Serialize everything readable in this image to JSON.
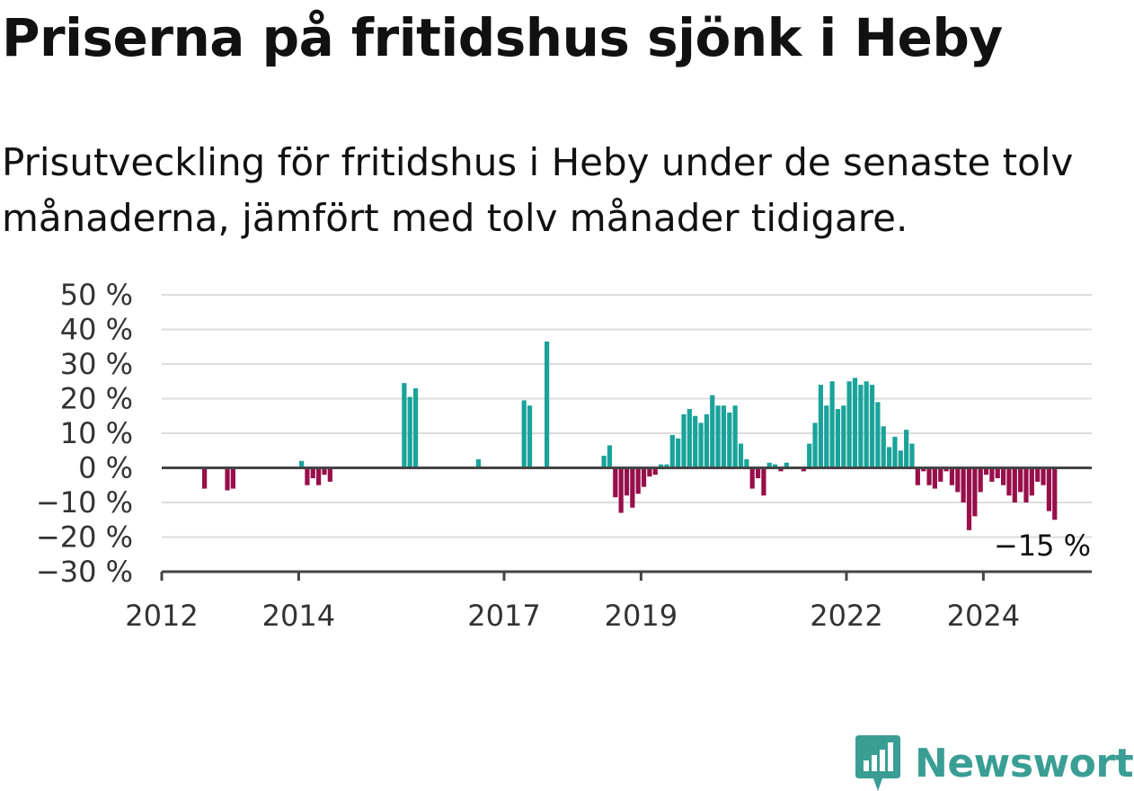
{
  "chart_data": {
    "type": "bar",
    "title": "Priserna på fritidshus sjönk i Heby",
    "subtitle": "Prisutveckling för fritidshus i Heby under de senaste tolv månaderna, jämfört med tolv månader tidigare.",
    "ylabel": "",
    "xlabel": "",
    "ylim": [
      -30,
      50
    ],
    "yticks": [
      {
        "value": 50,
        "label": "50 %"
      },
      {
        "value": 40,
        "label": "40 %"
      },
      {
        "value": 30,
        "label": "30 %"
      },
      {
        "value": 20,
        "label": "20 %"
      },
      {
        "value": 10,
        "label": "10 %"
      },
      {
        "value": 0,
        "label": "0 %"
      },
      {
        "value": -10,
        "label": "−10 %"
      },
      {
        "value": -20,
        "label": "−20 %"
      },
      {
        "value": -30,
        "label": "−30 %"
      }
    ],
    "xticks": [
      {
        "year": 2012,
        "label": "2012"
      },
      {
        "year": 2014,
        "label": "2014"
      },
      {
        "year": 2017,
        "label": "2017"
      },
      {
        "year": 2019,
        "label": "2019"
      },
      {
        "year": 2022,
        "label": "2022"
      },
      {
        "year": 2024,
        "label": "2024"
      }
    ],
    "x_start": "2012-01",
    "x_end": "2025-08",
    "grid": true,
    "positive_color": "#1aa39a",
    "negative_color": "#970f4a",
    "annotation": {
      "label": "−15 %",
      "month": "2024-12"
    },
    "bars": [
      {
        "month": "2012-08",
        "value": -6
      },
      {
        "month": "2012-12",
        "value": -6.5
      },
      {
        "month": "2013-01",
        "value": -6
      },
      {
        "month": "2014-01",
        "value": 2
      },
      {
        "month": "2014-02",
        "value": -5
      },
      {
        "month": "2014-03",
        "value": -3
      },
      {
        "month": "2014-04",
        "value": -5
      },
      {
        "month": "2014-05",
        "value": -2
      },
      {
        "month": "2014-06",
        "value": -4
      },
      {
        "month": "2015-07",
        "value": 24.5
      },
      {
        "month": "2015-08",
        "value": 20.5
      },
      {
        "month": "2015-09",
        "value": 23
      },
      {
        "month": "2016-08",
        "value": 2.5
      },
      {
        "month": "2017-04",
        "value": 19.5
      },
      {
        "month": "2017-05",
        "value": 18
      },
      {
        "month": "2017-08",
        "value": 36.5
      },
      {
        "month": "2018-06",
        "value": 3.5
      },
      {
        "month": "2018-07",
        "value": 6.5
      },
      {
        "month": "2018-08",
        "value": -8.5
      },
      {
        "month": "2018-09",
        "value": -13
      },
      {
        "month": "2018-10",
        "value": -8
      },
      {
        "month": "2018-11",
        "value": -11.5
      },
      {
        "month": "2018-12",
        "value": -7.5
      },
      {
        "month": "2019-01",
        "value": -5.5
      },
      {
        "month": "2019-02",
        "value": -2.5
      },
      {
        "month": "2019-03",
        "value": -2
      },
      {
        "month": "2019-04",
        "value": 1
      },
      {
        "month": "2019-05",
        "value": 1
      },
      {
        "month": "2019-06",
        "value": 9.5
      },
      {
        "month": "2019-07",
        "value": 8.5
      },
      {
        "month": "2019-08",
        "value": 15.5
      },
      {
        "month": "2019-09",
        "value": 17
      },
      {
        "month": "2019-10",
        "value": 15
      },
      {
        "month": "2019-11",
        "value": 13
      },
      {
        "month": "2019-12",
        "value": 15.5
      },
      {
        "month": "2020-01",
        "value": 21
      },
      {
        "month": "2020-02",
        "value": 18
      },
      {
        "month": "2020-03",
        "value": 18
      },
      {
        "month": "2020-04",
        "value": 16
      },
      {
        "month": "2020-05",
        "value": 18
      },
      {
        "month": "2020-06",
        "value": 7
      },
      {
        "month": "2020-07",
        "value": 2.5
      },
      {
        "month": "2020-08",
        "value": -6
      },
      {
        "month": "2020-09",
        "value": -3
      },
      {
        "month": "2020-10",
        "value": -8
      },
      {
        "month": "2020-11",
        "value": 1.5
      },
      {
        "month": "2020-12",
        "value": 1
      },
      {
        "month": "2021-01",
        "value": -1
      },
      {
        "month": "2021-02",
        "value": 1.5
      },
      {
        "month": "2021-05",
        "value": -1
      },
      {
        "month": "2021-06",
        "value": 7
      },
      {
        "month": "2021-07",
        "value": 13
      },
      {
        "month": "2021-08",
        "value": 24
      },
      {
        "month": "2021-09",
        "value": 18
      },
      {
        "month": "2021-10",
        "value": 25
      },
      {
        "month": "2021-11",
        "value": 17
      },
      {
        "month": "2021-12",
        "value": 18
      },
      {
        "month": "2022-01",
        "value": 25
      },
      {
        "month": "2022-02",
        "value": 26
      },
      {
        "month": "2022-03",
        "value": 24
      },
      {
        "month": "2022-04",
        "value": 25
      },
      {
        "month": "2022-05",
        "value": 24
      },
      {
        "month": "2022-06",
        "value": 19
      },
      {
        "month": "2022-07",
        "value": 12
      },
      {
        "month": "2022-08",
        "value": 6
      },
      {
        "month": "2022-09",
        "value": 9
      },
      {
        "month": "2022-10",
        "value": 5
      },
      {
        "month": "2022-11",
        "value": 11
      },
      {
        "month": "2022-12",
        "value": 7
      },
      {
        "month": "2023-01",
        "value": -5
      },
      {
        "month": "2023-02",
        "value": -1
      },
      {
        "month": "2023-03",
        "value": -5
      },
      {
        "month": "2023-04",
        "value": -6
      },
      {
        "month": "2023-05",
        "value": -4
      },
      {
        "month": "2023-06",
        "value": -1
      },
      {
        "month": "2023-07",
        "value": -5
      },
      {
        "month": "2023-08",
        "value": -7
      },
      {
        "month": "2023-09",
        "value": -10
      },
      {
        "month": "2023-10",
        "value": -18
      },
      {
        "month": "2023-11",
        "value": -14
      },
      {
        "month": "2023-12",
        "value": -7
      },
      {
        "month": "2024-01",
        "value": -2
      },
      {
        "month": "2024-02",
        "value": -4
      },
      {
        "month": "2024-03",
        "value": -3
      },
      {
        "month": "2024-04",
        "value": -5
      },
      {
        "month": "2024-05",
        "value": -8
      },
      {
        "month": "2024-06",
        "value": -10
      },
      {
        "month": "2024-07",
        "value": -7
      },
      {
        "month": "2024-08",
        "value": -10
      },
      {
        "month": "2024-09",
        "value": -8
      },
      {
        "month": "2024-10",
        "value": -4
      },
      {
        "month": "2024-11",
        "value": -5
      },
      {
        "month": "2024-12",
        "value": -12.5
      },
      {
        "month": "2025-01",
        "value": -15
      }
    ]
  },
  "brand": {
    "name": "Newsworthy",
    "color": "#3a9e95",
    "icon": "newsworthy-logo-icon"
  }
}
